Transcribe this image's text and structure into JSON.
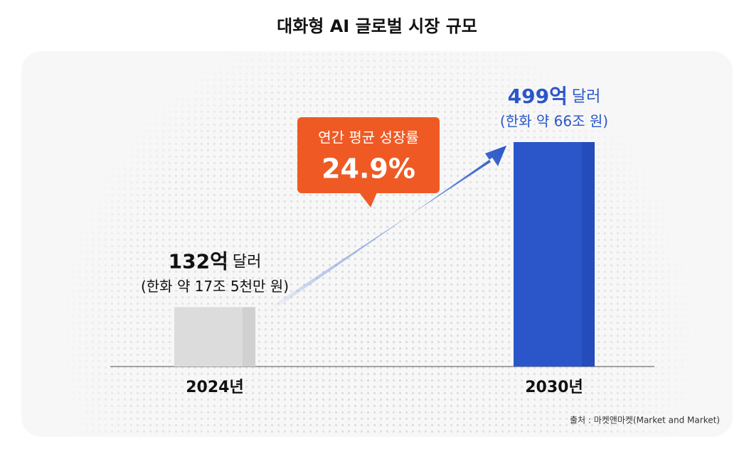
{
  "chart_data": {
    "type": "bar",
    "title": "대화형 AI 글로벌 시장 규모",
    "categories": [
      "2024년",
      "2030년"
    ],
    "values": [
      132,
      499
    ],
    "value_labels": [
      "132억",
      "499억"
    ],
    "value_unit": "달러",
    "sub_labels": [
      "(한화 약 17조 5천만 원)",
      "(한화 약 66조 원)"
    ],
    "colors": [
      "#dcdcdc",
      "#2b56c9"
    ],
    "label_colors": [
      "#111111",
      "#2b56c9"
    ],
    "growth_title": "연간 평균 성장률",
    "growth_rate": 24.9,
    "growth_rate_label": "24.9%",
    "source": "출처 : 마켓앤마켓(Market and Market)"
  }
}
